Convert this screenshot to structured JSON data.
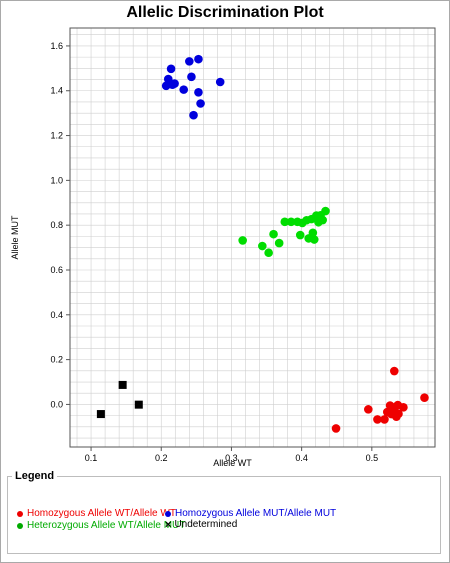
{
  "colors": {
    "homozygous_wt": "#ee0000",
    "homozygous_mut": "#0000dd",
    "heterozygous": "#00dd00",
    "undetermined": "#000000"
  },
  "chart_data": {
    "type": "scatter",
    "title": "Allelic Discrimination Plot",
    "xlabel": "Allele WT",
    "ylabel": "Allele MUT",
    "xlim": [
      0.07,
      0.59
    ],
    "ylim": [
      -0.19,
      1.68
    ],
    "xticks": [
      "0.1",
      "0.2",
      "0.3",
      "0.4",
      "0.5"
    ],
    "yticks": [
      "0.0",
      "0.2",
      "0.4",
      "0.6",
      "0.8",
      "1.0",
      "1.2",
      "1.4",
      "1.6"
    ],
    "grid": true,
    "legend_position": "bottom",
    "series": [
      {
        "name": "Homozygous Allele WT/Allele WT",
        "color": "#ee0000",
        "marker": "circle",
        "points": [
          [
            0.449,
            -0.107
          ],
          [
            0.495,
            -0.022
          ],
          [
            0.508,
            -0.067
          ],
          [
            0.518,
            -0.067
          ],
          [
            0.522,
            -0.034
          ],
          [
            0.526,
            -0.005
          ],
          [
            0.528,
            -0.043
          ],
          [
            0.53,
            -0.013
          ],
          [
            0.532,
            0.149
          ],
          [
            0.533,
            -0.033
          ],
          [
            0.535,
            -0.055
          ],
          [
            0.537,
            -0.003
          ],
          [
            0.538,
            -0.042
          ],
          [
            0.545,
            -0.013
          ],
          [
            0.575,
            0.03
          ]
        ]
      },
      {
        "name": "Homozygous Allele MUT/Allele MUT",
        "color": "#0000dd",
        "marker": "circle",
        "points": [
          [
            0.207,
            1.422
          ],
          [
            0.21,
            1.452
          ],
          [
            0.214,
            1.498
          ],
          [
            0.216,
            1.427
          ],
          [
            0.219,
            1.432
          ],
          [
            0.232,
            1.405
          ],
          [
            0.24,
            1.531
          ],
          [
            0.243,
            1.462
          ],
          [
            0.246,
            1.291
          ],
          [
            0.253,
            1.541
          ],
          [
            0.253,
            1.393
          ],
          [
            0.256,
            1.343
          ],
          [
            0.284,
            1.439
          ]
        ]
      },
      {
        "name": "Heterozygous Allele WT/Allele MUT",
        "color": "#00dd00",
        "marker": "circle",
        "points": [
          [
            0.316,
            0.732
          ],
          [
            0.344,
            0.707
          ],
          [
            0.353,
            0.677
          ],
          [
            0.36,
            0.76
          ],
          [
            0.368,
            0.72
          ],
          [
            0.376,
            0.815
          ],
          [
            0.385,
            0.815
          ],
          [
            0.394,
            0.815
          ],
          [
            0.398,
            0.756
          ],
          [
            0.401,
            0.81
          ],
          [
            0.407,
            0.822
          ],
          [
            0.41,
            0.741
          ],
          [
            0.414,
            0.827
          ],
          [
            0.416,
            0.766
          ],
          [
            0.418,
            0.736
          ],
          [
            0.421,
            0.843
          ],
          [
            0.424,
            0.813
          ],
          [
            0.427,
            0.844
          ],
          [
            0.43,
            0.823
          ],
          [
            0.434,
            0.863
          ]
        ]
      },
      {
        "name": "Undetermined",
        "color": "#000000",
        "marker": "square",
        "points": [
          [
            0.114,
            -0.043
          ],
          [
            0.145,
            0.087
          ],
          [
            0.168,
            -0.001
          ]
        ]
      }
    ]
  },
  "legend": {
    "title": "Legend",
    "items": [
      {
        "label": "Homozygous Allele WT/Allele WT",
        "color": "#ee0000",
        "symbol": "dot"
      },
      {
        "label": "Homozygous Allele MUT/Allele MUT",
        "color": "#0000dd",
        "symbol": "dot"
      },
      {
        "label": "Heterozygous Allele WT/Allele MUT",
        "color": "#00aa00",
        "symbol": "dot"
      },
      {
        "label": "Undetermined",
        "color": "#000000",
        "symbol": "x"
      }
    ]
  }
}
